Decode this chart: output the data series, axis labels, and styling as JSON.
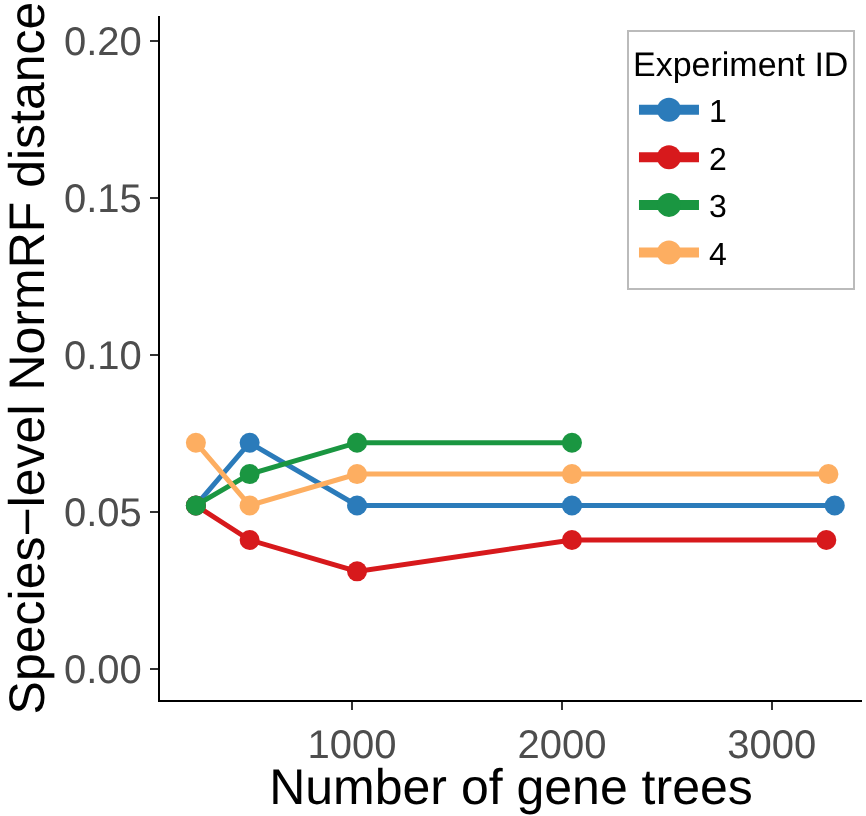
{
  "chart_data": {
    "type": "line",
    "xlabel": "Number of gene trees",
    "ylabel": "Species−level NormRF distance",
    "legend_title": "Experiment ID",
    "legend": "top right",
    "marker": "circle",
    "line_style": "solid",
    "xlim": [
      85,
      3430
    ],
    "xticks": [
      1000,
      2000,
      3000
    ],
    "ylim": [
      -0.01,
      0.208
    ],
    "yticks": [
      {
        "value": 0,
        "label": "0.00"
      },
      {
        "value": 0.05,
        "label": "0.05"
      },
      {
        "value": 0.1,
        "label": "0.10"
      },
      {
        "value": 0.15,
        "label": "0.15"
      },
      {
        "value": 0.2,
        "label": "0.20"
      }
    ],
    "series": [
      {
        "name": "1",
        "color": "#2b7bba",
        "x": [
          256,
          512,
          1024,
          2048,
          3300
        ],
        "values": [
          0.052,
          0.072,
          0.052,
          0.052,
          0.052
        ]
      },
      {
        "name": "2",
        "color": "#d7191c",
        "x": [
          256,
          512,
          1024,
          2048,
          3260
        ],
        "values": [
          0.052,
          0.041,
          0.031,
          0.041,
          0.041
        ]
      },
      {
        "name": "3",
        "color": "#1a9641",
        "x": [
          256,
          512,
          1024,
          2048
        ],
        "values": [
          0.052,
          0.062,
          0.072,
          0.072
        ]
      },
      {
        "name": "4",
        "color": "#fdae61",
        "x": [
          256,
          512,
          1024,
          2048,
          3270
        ],
        "values": [
          0.072,
          0.052,
          0.062,
          0.062,
          0.062
        ]
      }
    ]
  }
}
